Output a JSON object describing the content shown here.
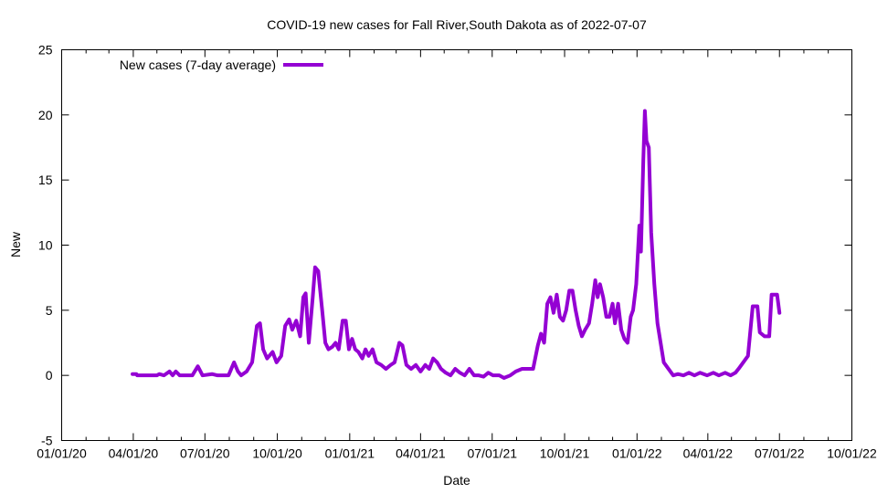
{
  "chart_data": {
    "type": "line",
    "title": "COVID-19 new cases for Fall River,South Dakota as of 2022-07-07",
    "xlabel": "Date",
    "ylabel": "New",
    "xlim": [
      "2020-01-01",
      "2022-10-01"
    ],
    "ylim": [
      -5,
      25
    ],
    "x_ticks": [
      "01/01/20",
      "04/01/20",
      "07/01/20",
      "10/01/20",
      "01/01/21",
      "04/01/21",
      "07/01/21",
      "10/01/21",
      "01/01/22",
      "04/01/22",
      "07/01/22",
      "10/01/22"
    ],
    "y_ticks": [
      -5,
      0,
      5,
      10,
      15,
      20,
      25
    ],
    "legend_position": "top-left",
    "grid": false,
    "series": [
      {
        "name": "New cases (7-day average)",
        "color": "#9400d3",
        "points": [
          [
            "2020-03-31",
            0.1
          ],
          [
            "2020-04-05",
            0.1
          ],
          [
            "2020-04-06",
            0.0
          ],
          [
            "2020-05-01",
            0.0
          ],
          [
            "2020-05-04",
            0.1
          ],
          [
            "2020-05-10",
            0.0
          ],
          [
            "2020-05-17",
            0.3
          ],
          [
            "2020-05-21",
            0.0
          ],
          [
            "2020-05-25",
            0.3
          ],
          [
            "2020-05-30",
            0.0
          ],
          [
            "2020-06-15",
            0.0
          ],
          [
            "2020-06-22",
            0.7
          ],
          [
            "2020-06-28",
            0.0
          ],
          [
            "2020-07-10",
            0.1
          ],
          [
            "2020-07-17",
            0.0
          ],
          [
            "2020-07-31",
            0.0
          ],
          [
            "2020-08-07",
            1.0
          ],
          [
            "2020-08-12",
            0.3
          ],
          [
            "2020-08-16",
            0.0
          ],
          [
            "2020-08-23",
            0.3
          ],
          [
            "2020-08-30",
            1.0
          ],
          [
            "2020-09-05",
            3.8
          ],
          [
            "2020-09-09",
            4.0
          ],
          [
            "2020-09-13",
            2.0
          ],
          [
            "2020-09-18",
            1.3
          ],
          [
            "2020-09-25",
            1.8
          ],
          [
            "2020-09-30",
            1.0
          ],
          [
            "2020-10-06",
            1.5
          ],
          [
            "2020-10-11",
            3.8
          ],
          [
            "2020-10-16",
            4.3
          ],
          [
            "2020-10-20",
            3.5
          ],
          [
            "2020-10-25",
            4.2
          ],
          [
            "2020-10-30",
            3.0
          ],
          [
            "2020-11-03",
            6.0
          ],
          [
            "2020-11-06",
            6.3
          ],
          [
            "2020-11-10",
            2.5
          ],
          [
            "2020-11-15",
            6.0
          ],
          [
            "2020-11-18",
            8.3
          ],
          [
            "2020-11-22",
            8.0
          ],
          [
            "2020-11-27",
            5.0
          ],
          [
            "2020-12-01",
            2.5
          ],
          [
            "2020-12-05",
            2.0
          ],
          [
            "2020-12-10",
            2.2
          ],
          [
            "2020-12-14",
            2.5
          ],
          [
            "2020-12-18",
            2.0
          ],
          [
            "2020-12-23",
            4.2
          ],
          [
            "2020-12-27",
            4.2
          ],
          [
            "2020-12-31",
            2.0
          ],
          [
            "2021-01-04",
            2.8
          ],
          [
            "2021-01-08",
            2.0
          ],
          [
            "2021-01-12",
            1.8
          ],
          [
            "2021-01-17",
            1.3
          ],
          [
            "2021-01-21",
            2.0
          ],
          [
            "2021-01-25",
            1.5
          ],
          [
            "2021-01-30",
            2.0
          ],
          [
            "2021-02-04",
            1.0
          ],
          [
            "2021-02-10",
            0.8
          ],
          [
            "2021-02-16",
            0.5
          ],
          [
            "2021-02-22",
            0.8
          ],
          [
            "2021-02-27",
            1.0
          ],
          [
            "2021-03-05",
            2.5
          ],
          [
            "2021-03-09",
            2.3
          ],
          [
            "2021-03-14",
            0.8
          ],
          [
            "2021-03-20",
            0.5
          ],
          [
            "2021-03-26",
            0.8
          ],
          [
            "2021-04-01",
            0.3
          ],
          [
            "2021-04-07",
            0.8
          ],
          [
            "2021-04-12",
            0.5
          ],
          [
            "2021-04-17",
            1.3
          ],
          [
            "2021-04-22",
            1.0
          ],
          [
            "2021-04-27",
            0.5
          ],
          [
            "2021-05-03",
            0.2
          ],
          [
            "2021-05-09",
            0.0
          ],
          [
            "2021-05-15",
            0.5
          ],
          [
            "2021-05-21",
            0.2
          ],
          [
            "2021-05-27",
            0.0
          ],
          [
            "2021-06-02",
            0.5
          ],
          [
            "2021-06-08",
            0.0
          ],
          [
            "2021-06-14",
            0.0
          ],
          [
            "2021-06-20",
            -0.1
          ],
          [
            "2021-06-26",
            0.2
          ],
          [
            "2021-07-02",
            0.0
          ],
          [
            "2021-07-10",
            0.0
          ],
          [
            "2021-07-16",
            -0.2
          ],
          [
            "2021-07-24",
            0.0
          ],
          [
            "2021-07-31",
            0.3
          ],
          [
            "2021-08-08",
            0.5
          ],
          [
            "2021-08-16",
            0.5
          ],
          [
            "2021-08-22",
            0.5
          ],
          [
            "2021-08-28",
            2.3
          ],
          [
            "2021-09-01",
            3.2
          ],
          [
            "2021-09-05",
            2.5
          ],
          [
            "2021-09-09",
            5.5
          ],
          [
            "2021-09-13",
            6.0
          ],
          [
            "2021-09-17",
            4.8
          ],
          [
            "2021-09-21",
            6.2
          ],
          [
            "2021-09-25",
            4.5
          ],
          [
            "2021-09-29",
            4.2
          ],
          [
            "2021-10-03",
            5.0
          ],
          [
            "2021-10-07",
            6.5
          ],
          [
            "2021-10-11",
            6.5
          ],
          [
            "2021-10-15",
            5.0
          ],
          [
            "2021-10-19",
            3.8
          ],
          [
            "2021-10-23",
            3.0
          ],
          [
            "2021-10-27",
            3.5
          ],
          [
            "2021-11-01",
            4.0
          ],
          [
            "2021-11-05",
            5.5
          ],
          [
            "2021-11-09",
            7.3
          ],
          [
            "2021-11-12",
            6.0
          ],
          [
            "2021-11-15",
            7.0
          ],
          [
            "2021-11-19",
            6.0
          ],
          [
            "2021-11-23",
            4.5
          ],
          [
            "2021-11-27",
            4.5
          ],
          [
            "2021-12-01",
            5.5
          ],
          [
            "2021-12-04",
            4.0
          ],
          [
            "2021-12-08",
            5.5
          ],
          [
            "2021-12-12",
            3.5
          ],
          [
            "2021-12-16",
            2.8
          ],
          [
            "2021-12-20",
            2.5
          ],
          [
            "2021-12-24",
            4.5
          ],
          [
            "2021-12-27",
            5.0
          ],
          [
            "2021-12-31",
            7.0
          ],
          [
            "2022-01-04",
            11.5
          ],
          [
            "2022-01-06",
            9.5
          ],
          [
            "2022-01-09",
            16.5
          ],
          [
            "2022-01-11",
            20.3
          ],
          [
            "2022-01-13",
            18.0
          ],
          [
            "2022-01-16",
            17.5
          ],
          [
            "2022-01-19",
            11.0
          ],
          [
            "2022-01-23",
            7.0
          ],
          [
            "2022-01-27",
            4.0
          ],
          [
            "2022-01-31",
            2.5
          ],
          [
            "2022-02-04",
            1.0
          ],
          [
            "2022-02-10",
            0.5
          ],
          [
            "2022-02-16",
            0.0
          ],
          [
            "2022-02-22",
            0.1
          ],
          [
            "2022-03-01",
            0.0
          ],
          [
            "2022-03-08",
            0.2
          ],
          [
            "2022-03-15",
            0.0
          ],
          [
            "2022-03-22",
            0.2
          ],
          [
            "2022-03-31",
            0.0
          ],
          [
            "2022-04-08",
            0.2
          ],
          [
            "2022-04-15",
            0.0
          ],
          [
            "2022-04-23",
            0.2
          ],
          [
            "2022-04-30",
            0.0
          ],
          [
            "2022-05-06",
            0.2
          ],
          [
            "2022-05-10",
            0.5
          ],
          [
            "2022-05-16",
            1.0
          ],
          [
            "2022-05-22",
            1.5
          ],
          [
            "2022-05-28",
            5.3
          ],
          [
            "2022-06-03",
            5.3
          ],
          [
            "2022-06-06",
            3.3
          ],
          [
            "2022-06-12",
            3.0
          ],
          [
            "2022-06-18",
            3.0
          ],
          [
            "2022-06-21",
            6.2
          ],
          [
            "2022-06-28",
            6.2
          ],
          [
            "2022-07-01",
            4.8
          ]
        ]
      }
    ]
  }
}
